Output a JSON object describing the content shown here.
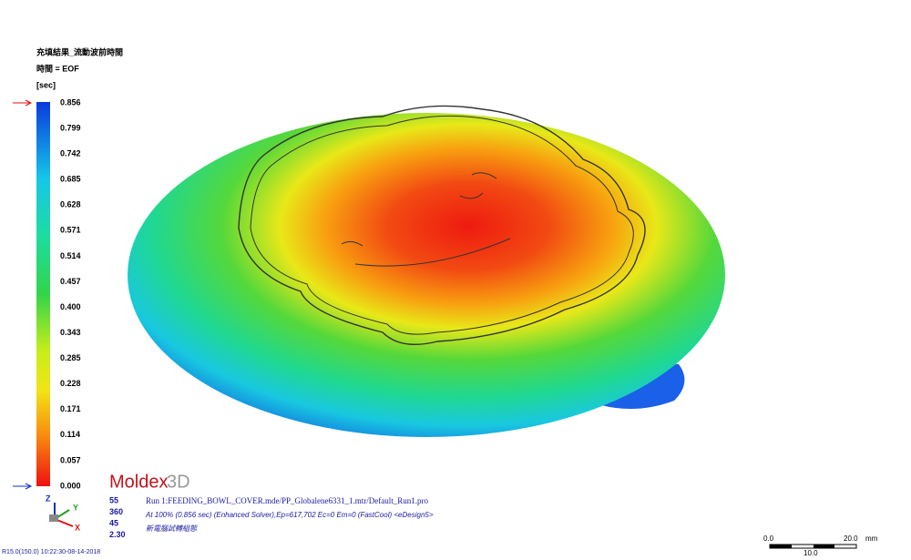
{
  "header": {
    "title": "充填結果_流動波前時間",
    "time": "時間 = EOF",
    "unit": "[sec]"
  },
  "legend": {
    "labels": [
      "0.856",
      "0.799",
      "0.742",
      "0.685",
      "0.628",
      "0.571",
      "0.514",
      "0.457",
      "0.400",
      "0.343",
      "0.285",
      "0.228",
      "0.171",
      "0.114",
      "0.057",
      "0.000"
    ]
  },
  "logo": {
    "brand": "Moldex",
    "suffix": "3D"
  },
  "view": {
    "values": [
      "55",
      "360",
      "45",
      "2.30"
    ]
  },
  "run": {
    "line1": "Run 1:FEEDING_BOWL_COVER.mde/PP_Globalene6331_1.mtr/Default_Run1.pro",
    "line2": "At 100% (0.856 sec) (Enhanced Solver),Ep=617,702 Ec=0 Em=0 (FastCool) <eDesign5>",
    "line3": "新電腦試轉組態"
  },
  "axes": {
    "z": "Z",
    "y": "Y",
    "x": "X"
  },
  "footer": {
    "version": "R15.0(150.0) 10:22:30-08-14-2018"
  },
  "scale": {
    "start": "0.0",
    "end": "20.0",
    "unit": "mm",
    "mid": "10.0"
  }
}
